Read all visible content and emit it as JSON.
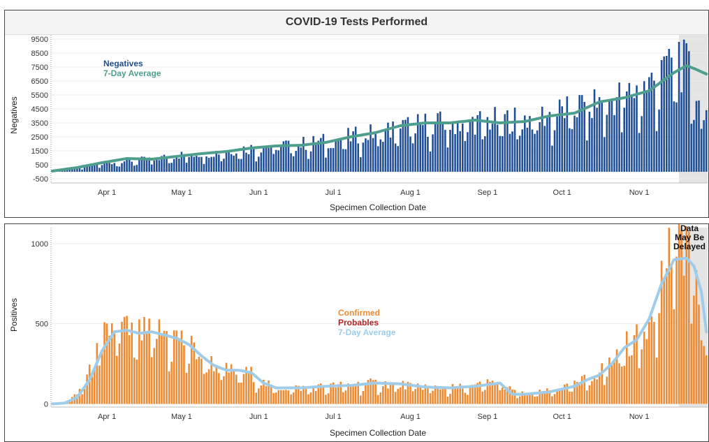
{
  "title": "COVID-19 Tests Performed",
  "colors": {
    "negatives": "#1f4e96",
    "neg_avg": "#4e9e8e",
    "confirmed": "#ee8a32",
    "probables": "#b5231f",
    "pos_avg": "#9fcde9",
    "shade": "#e4e4e4"
  },
  "chart_data": [
    {
      "type": "bar",
      "ylabel": "Negatives",
      "xlabel": "Specimen Collection Date",
      "yticks": [
        -500,
        500,
        1500,
        2500,
        3500,
        4500,
        5500,
        6500,
        7500,
        8500,
        9500
      ],
      "ylim": [
        -800,
        9800
      ],
      "x_ticks": [
        "Apr 1",
        "May 1",
        "Jun 1",
        "Jul 1",
        "Aug 1",
        "Sep 1",
        "Oct 1",
        "Nov 1"
      ],
      "x_range": [
        "Mar 10",
        "Nov 28"
      ],
      "legend": [
        "Negatives",
        "7-Day Average"
      ],
      "series": [
        {
          "name": "Negatives",
          "type": "bar",
          "anchors": [
            [
              0,
              50
            ],
            [
              10,
              300
            ],
            [
              20,
              600
            ],
            [
              30,
              800
            ],
            [
              40,
              900
            ],
            [
              50,
              1200
            ],
            [
              60,
              1300
            ],
            [
              70,
              1500
            ],
            [
              80,
              1700
            ],
            [
              90,
              1900
            ],
            [
              100,
              2000
            ],
            [
              110,
              2200
            ],
            [
              120,
              2500
            ],
            [
              130,
              2800
            ],
            [
              140,
              3200
            ],
            [
              150,
              3400
            ],
            [
              160,
              3500
            ],
            [
              170,
              3600
            ],
            [
              180,
              3700
            ],
            [
              190,
              3800
            ],
            [
              200,
              4100
            ],
            [
              210,
              4600
            ],
            [
              220,
              5000
            ],
            [
              230,
              5500
            ],
            [
              240,
              6200
            ],
            [
              250,
              8000
            ],
            [
              256,
              7200
            ],
            [
              258,
              6400
            ],
            [
              260,
              4800
            ],
            [
              262,
              3500
            ]
          ],
          "peaks": [
            [
              248,
              8800
            ],
            [
              252,
              9300
            ],
            [
              245,
              8000
            ],
            [
              247,
              8300
            ]
          ]
        },
        {
          "name": "7-Day Average",
          "type": "line",
          "anchors": [
            [
              0,
              50
            ],
            [
              10,
              300
            ],
            [
              20,
              650
            ],
            [
              30,
              950
            ],
            [
              40,
              900
            ],
            [
              50,
              1100
            ],
            [
              60,
              1300
            ],
            [
              70,
              1450
            ],
            [
              80,
              1700
            ],
            [
              90,
              1850
            ],
            [
              100,
              1900
            ],
            [
              110,
              2100
            ],
            [
              120,
              2500
            ],
            [
              130,
              2800
            ],
            [
              140,
              3300
            ],
            [
              150,
              3500
            ],
            [
              160,
              3500
            ],
            [
              170,
              3700
            ],
            [
              180,
              3500
            ],
            [
              190,
              3600
            ],
            [
              200,
              4000
            ],
            [
              210,
              4200
            ],
            [
              220,
              5000
            ],
            [
              230,
              5300
            ],
            [
              240,
              5800
            ],
            [
              250,
              7100
            ],
            [
              255,
              7600
            ],
            [
              258,
              7400
            ],
            [
              263,
              7000
            ]
          ]
        }
      ]
    },
    {
      "type": "bar",
      "ylabel": "Positives",
      "xlabel": "Specimen Collection Date",
      "yticks": [
        0,
        500,
        1000
      ],
      "ylim": [
        -20,
        1100
      ],
      "x_ticks": [
        "Apr 1",
        "May 1",
        "Jun 1",
        "Jul 1",
        "Aug 1",
        "Sep 1",
        "Oct 1",
        "Nov 1"
      ],
      "legend": [
        "Confirmed",
        "Probables",
        "7-Day Average"
      ],
      "annotation": [
        "Data",
        "May Be",
        "Delayed"
      ],
      "series": [
        {
          "name": "Confirmed",
          "type": "bar",
          "anchors": [
            [
              0,
              0
            ],
            [
              5,
              5
            ],
            [
              10,
              60
            ],
            [
              15,
              200
            ],
            [
              20,
              400
            ],
            [
              25,
              500
            ],
            [
              30,
              460
            ],
            [
              35,
              430
            ],
            [
              40,
              450
            ],
            [
              45,
              450
            ],
            [
              50,
              420
            ],
            [
              55,
              370
            ],
            [
              60,
              300
            ],
            [
              65,
              250
            ],
            [
              70,
              210
            ],
            [
              75,
              200
            ],
            [
              80,
              190
            ],
            [
              85,
              130
            ],
            [
              90,
              100
            ],
            [
              100,
              100
            ],
            [
              110,
              110
            ],
            [
              120,
              120
            ],
            [
              130,
              130
            ],
            [
              140,
              120
            ],
            [
              150,
              110
            ],
            [
              160,
              100
            ],
            [
              170,
              110
            ],
            [
              175,
              130
            ],
            [
              180,
              140
            ],
            [
              185,
              80
            ],
            [
              190,
              60
            ],
            [
              200,
              80
            ],
            [
              210,
              120
            ],
            [
              215,
              160
            ],
            [
              220,
              200
            ],
            [
              225,
              270
            ],
            [
              230,
              370
            ],
            [
              235,
              400
            ],
            [
              240,
              550
            ],
            [
              245,
              800
            ],
            [
              250,
              1050
            ],
            [
              255,
              1060
            ],
            [
              258,
              900
            ],
            [
              260,
              500
            ],
            [
              262,
              380
            ]
          ]
        },
        {
          "name": "7-Day Average",
          "type": "line",
          "anchors": [
            [
              0,
              0
            ],
            [
              5,
              5
            ],
            [
              10,
              40
            ],
            [
              15,
              150
            ],
            [
              20,
              330
            ],
            [
              25,
              450
            ],
            [
              30,
              460
            ],
            [
              35,
              440
            ],
            [
              40,
              450
            ],
            [
              45,
              430
            ],
            [
              50,
              410
            ],
            [
              55,
              370
            ],
            [
              60,
              300
            ],
            [
              65,
              240
            ],
            [
              70,
              210
            ],
            [
              75,
              210
            ],
            [
              80,
              195
            ],
            [
              85,
              130
            ],
            [
              90,
              100
            ],
            [
              100,
              100
            ],
            [
              110,
              110
            ],
            [
              120,
              115
            ],
            [
              130,
              130
            ],
            [
              140,
              125
            ],
            [
              150,
              105
            ],
            [
              160,
              100
            ],
            [
              170,
              110
            ],
            [
              175,
              120
            ],
            [
              180,
              130
            ],
            [
              185,
              60
            ],
            [
              190,
              60
            ],
            [
              200,
              75
            ],
            [
              210,
              110
            ],
            [
              215,
              150
            ],
            [
              220,
              180
            ],
            [
              225,
              250
            ],
            [
              230,
              350
            ],
            [
              235,
              400
            ],
            [
              240,
              530
            ],
            [
              245,
              750
            ],
            [
              250,
              900
            ],
            [
              255,
              910
            ],
            [
              258,
              860
            ],
            [
              261,
              700
            ],
            [
              263,
              450
            ]
          ]
        }
      ]
    }
  ]
}
